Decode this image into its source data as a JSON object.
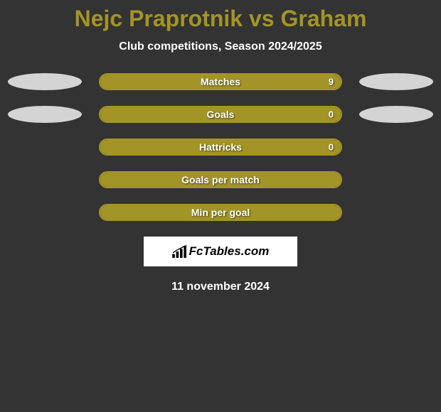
{
  "title": "Nejc Praprotnik vs Graham",
  "subtitle": "Club competitions, Season 2024/2025",
  "bars": [
    {
      "label": "Matches",
      "value": "9",
      "fill_pct": 100,
      "has_right_value": true,
      "left_ellipse": true,
      "right_ellipse": true
    },
    {
      "label": "Goals",
      "value": "0",
      "fill_pct": 100,
      "has_right_value": true,
      "left_ellipse": true,
      "right_ellipse": true
    },
    {
      "label": "Hattricks",
      "value": "0",
      "fill_pct": 100,
      "has_right_value": true,
      "left_ellipse": false,
      "right_ellipse": false
    },
    {
      "label": "Goals per match",
      "value": "",
      "fill_pct": 100,
      "has_right_value": false,
      "left_ellipse": false,
      "right_ellipse": false
    },
    {
      "label": "Min per goal",
      "value": "",
      "fill_pct": 100,
      "has_right_value": false,
      "left_ellipse": false,
      "right_ellipse": false
    }
  ],
  "logo_text": "FcTables.com",
  "date": "11 november 2024",
  "colors": {
    "background": "#333333",
    "accent": "#a39428",
    "title": "#a39428",
    "text": "#ffffff",
    "ellipse": "#d4d4d4",
    "logo_bg": "#ffffff"
  }
}
